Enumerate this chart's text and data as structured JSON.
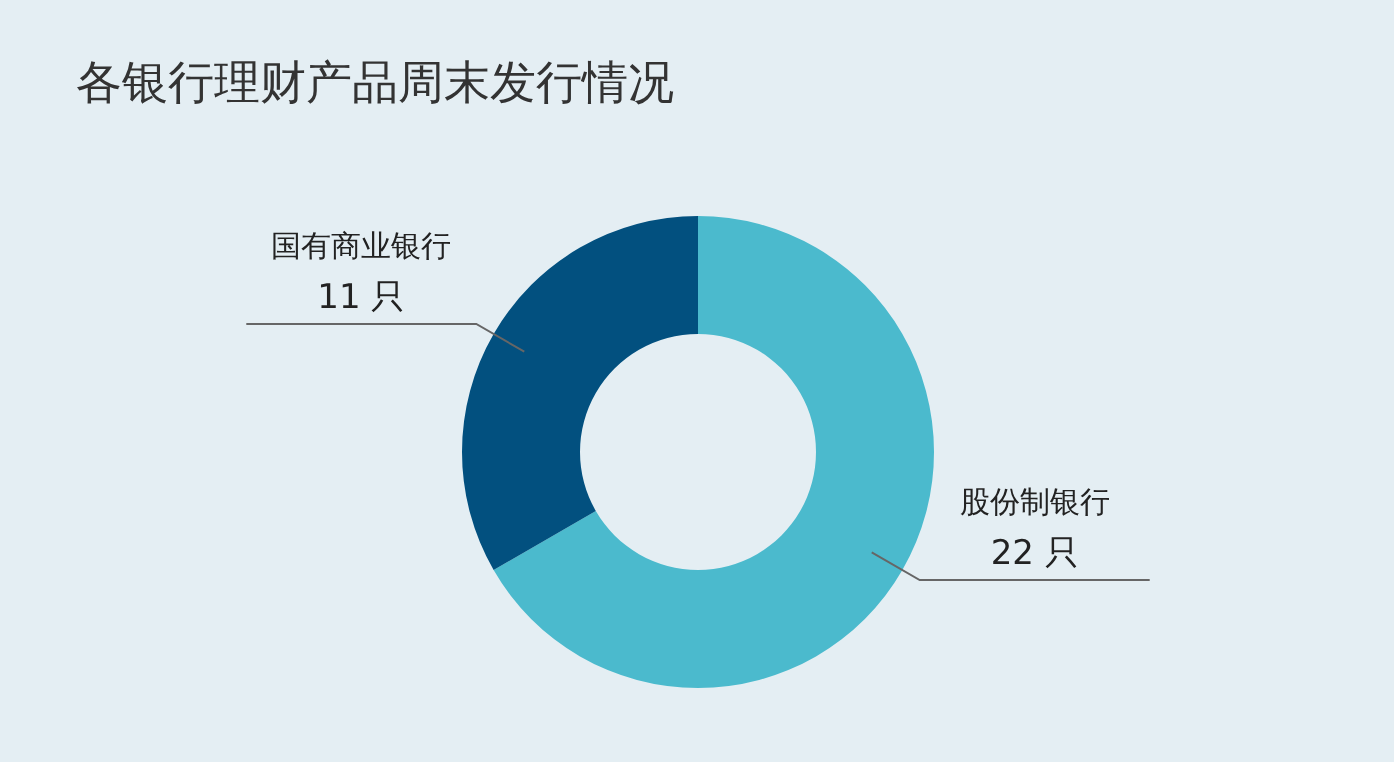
{
  "chart_data": {
    "type": "donut",
    "title": "各银行理财产品周末发行情况",
    "categories": [
      "股份制银行",
      "国有商业银行"
    ],
    "values": [
      22,
      11
    ],
    "colors": [
      "#4bbacd",
      "#02507f"
    ],
    "value_labels": [
      "22 只",
      "11 只"
    ]
  }
}
